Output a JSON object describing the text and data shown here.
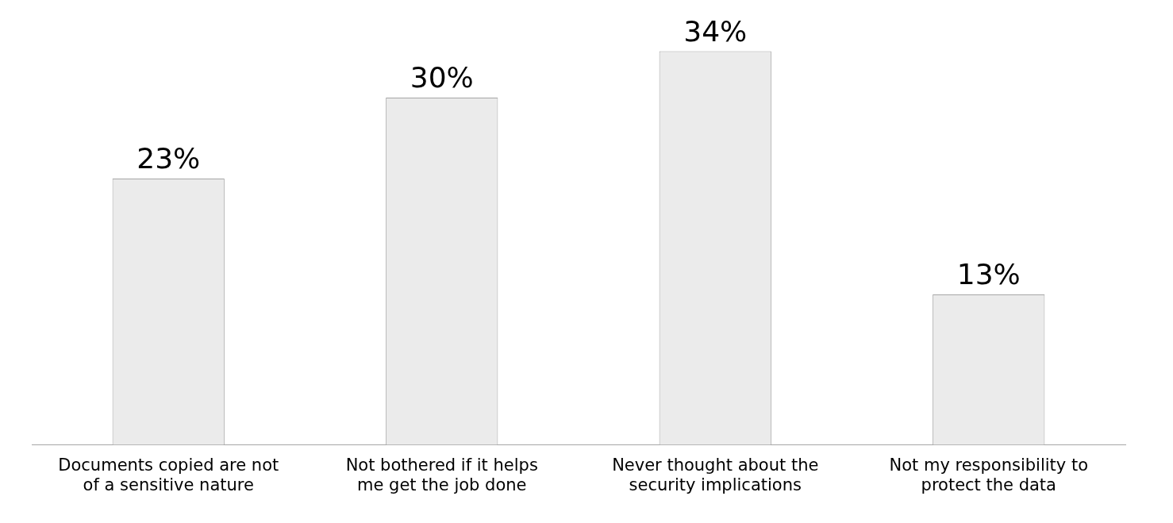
{
  "chart_data": {
    "type": "bar",
    "categories": [
      "Documents copied are not of a sensitive nature",
      "Not bothered if it helps me get the job done",
      "Never thought about the security implications",
      "Not my responsibility to protect the data"
    ],
    "values": [
      23,
      30,
      34,
      13
    ],
    "value_labels": [
      "23%",
      "30%",
      "34%",
      "13%"
    ],
    "color": "#ebebeb",
    "grid": false,
    "legend": false
  }
}
